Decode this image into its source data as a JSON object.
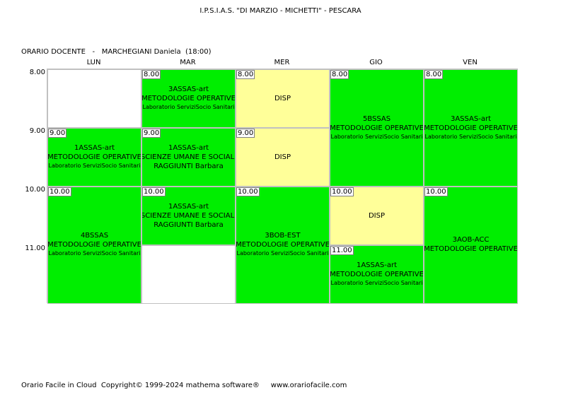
{
  "school_title": "I.P.S.I.A.S. \"DI MARZIO - MICHETTI\" - PESCARA",
  "header": {
    "label": "ORARIO DOCENTE",
    "separator": "-",
    "teacher": "MARCHEGIANI Daniela",
    "hours": "(18:00)"
  },
  "days": [
    "LUN",
    "MAR",
    "MER",
    "GIO",
    "VEN"
  ],
  "hours": [
    "8.00",
    "9.00",
    "10.00",
    "11.00"
  ],
  "cells": {
    "mon_9": {
      "time": "9.00",
      "class": "1ASSAS-art",
      "subject": "METODOLOGIE OPERATIVE",
      "room": "Laboratorio ServiziSocio Sanitari"
    },
    "mon_10": {
      "time": "10.00",
      "class": "4BSSAS",
      "subject": "METODOLOGIE OPERATIVE",
      "room": "Laboratorio ServiziSocio Sanitari"
    },
    "tue_8": {
      "time": "8.00",
      "class": "3ASSAS-art",
      "subject": "METODOLOGIE OPERATIVE",
      "room": "Laboratorio ServiziSocio Sanitari"
    },
    "tue_9": {
      "time": "9.00",
      "class": "1ASSAS-art",
      "subject": "SCIENZE UMANE E SOCIALI",
      "coteacher": "RAGGIUNTI Barbara"
    },
    "tue_10": {
      "time": "10.00",
      "class": "1ASSAS-art",
      "subject": "SCIENZE UMANE E SOCIALI",
      "coteacher": "RAGGIUNTI Barbara"
    },
    "wed_8": {
      "time": "8.00",
      "label": "DISP"
    },
    "wed_9": {
      "time": "9.00",
      "label": "DISP"
    },
    "wed_10": {
      "time": "10.00",
      "class": "3BOB-EST",
      "subject": "METODOLOGIE OPERATIVE",
      "room": "Laboratorio ServiziSocio Sanitari"
    },
    "thu_8": {
      "time": "8.00",
      "class": "5BSSAS",
      "subject": "METODOLOGIE OPERATIVE",
      "room": "Laboratorio ServiziSocio Sanitari"
    },
    "thu_10": {
      "time": "10.00",
      "label": "DISP"
    },
    "thu_11": {
      "time": "11.00",
      "class": "1ASSAS-art",
      "subject": "METODOLOGIE OPERATIVE",
      "room": "Laboratorio ServiziSocio Sanitari"
    },
    "fri_8": {
      "time": "8.00",
      "class": "3ASSAS-art",
      "subject": "METODOLOGIE OPERATIVE",
      "room": "Laboratorio ServiziSocio Sanitari"
    },
    "fri_10": {
      "time": "10.00",
      "class": "3AOB-ACC",
      "subject": "METODOLOGIE OPERATIVE"
    }
  },
  "footer": {
    "product": "Orario Facile in Cloud",
    "copyright": "Copyright© 1999-2024 mathema software®",
    "website": "www.orariofacile.com"
  },
  "colors": {
    "lesson": "#00ee00",
    "availability": "#ffff99",
    "empty": "#ffffff",
    "grid_line": "#c0c0c0"
  }
}
